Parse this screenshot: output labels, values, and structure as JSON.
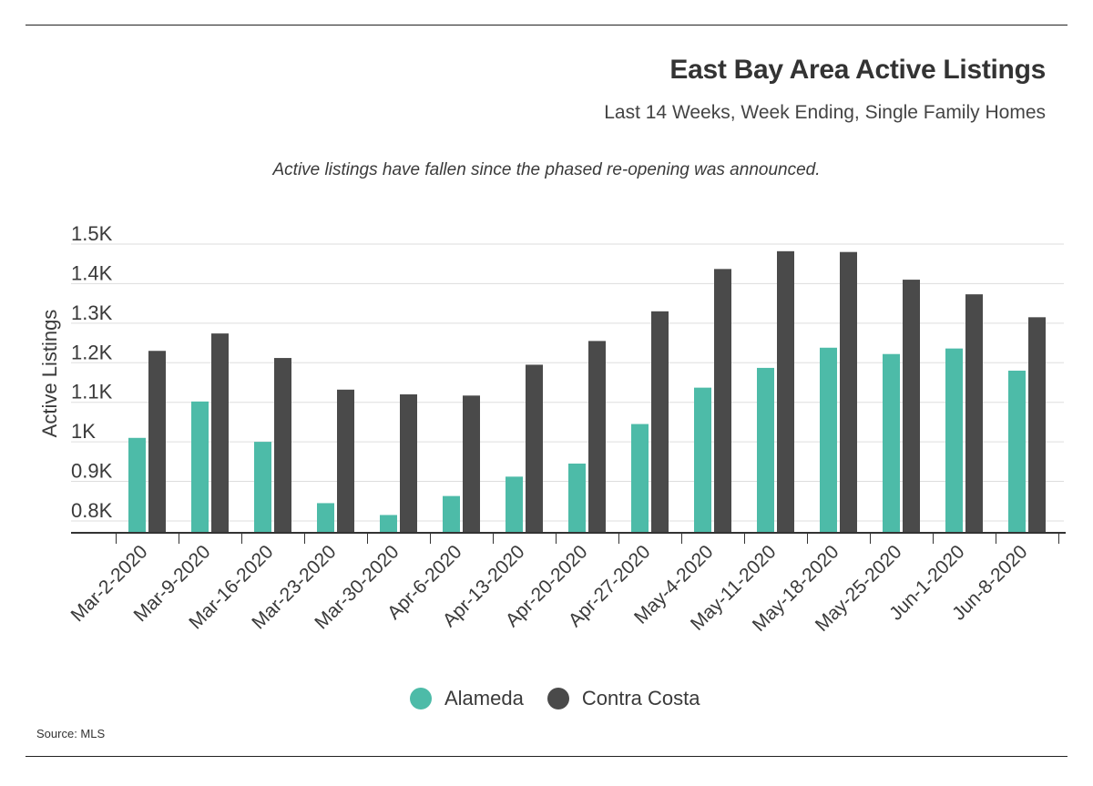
{
  "header": {
    "title": "East Bay Area Active Listings",
    "subtitle": "Last 14 Weeks, Week Ending, Single Family Homes",
    "annotation": "Active listings have fallen since the phased re-opening was announced."
  },
  "footer": {
    "source": "Source: MLS"
  },
  "colors": {
    "alameda": "#4dbba8",
    "contra_costa": "#4a4a4a",
    "grid": "#dddddd",
    "axis": "#333333"
  },
  "chart_data": {
    "type": "bar",
    "title": "East Bay Area Active Listings",
    "subtitle": "Last 14 Weeks, Week Ending, Single Family Homes",
    "xlabel": "",
    "ylabel": "Active Listings",
    "ylim": [
      770,
      1500
    ],
    "yticks": [
      800,
      900,
      1000,
      1100,
      1200,
      1300,
      1400,
      1500
    ],
    "ytick_labels": [
      "0.8K",
      "0.9K",
      "1K",
      "1.1K",
      "1.2K",
      "1.3K",
      "1.4K",
      "1.5K"
    ],
    "grid": true,
    "legend_position": "bottom",
    "categories": [
      "Mar-2-2020",
      "Mar-9-2020",
      "Mar-16-2020",
      "Mar-23-2020",
      "Mar-30-2020",
      "Apr-6-2020",
      "Apr-13-2020",
      "Apr-20-2020",
      "Apr-27-2020",
      "May-4-2020",
      "May-11-2020",
      "May-18-2020",
      "May-25-2020",
      "Jun-1-2020",
      "Jun-8-2020"
    ],
    "series": [
      {
        "name": "Alameda",
        "color": "#4dbba8",
        "values": [
          1010,
          1102,
          1000,
          845,
          815,
          863,
          912,
          945,
          1045,
          1137,
          1187,
          1238,
          1222,
          1236,
          1180
        ]
      },
      {
        "name": "Contra Costa",
        "color": "#4a4a4a",
        "values": [
          1230,
          1274,
          1212,
          1132,
          1120,
          1117,
          1195,
          1255,
          1330,
          1437,
          1482,
          1480,
          1410,
          1373,
          1315
        ]
      }
    ]
  }
}
